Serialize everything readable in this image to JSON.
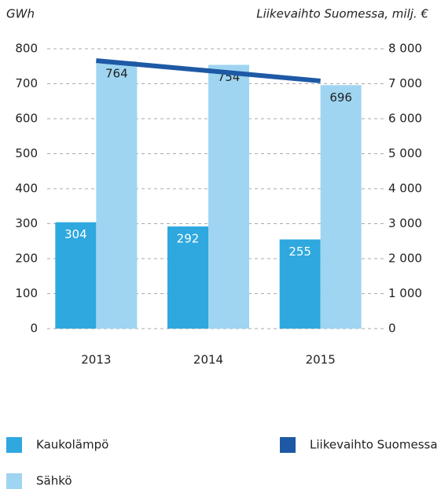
{
  "chart_data": {
    "type": "bar",
    "y_axis_label": "GWh",
    "y2_axis_label": "Liikevaihto Suomessa, milj. €",
    "categories": [
      "2013",
      "2014",
      "2015"
    ],
    "series": [
      {
        "name": "Kaukolämpö",
        "color": "#2fa8df",
        "values": [
          304,
          292,
          255
        ]
      },
      {
        "name": "Sähkö",
        "color": "#9fd5f1",
        "values": [
          764,
          754,
          696
        ]
      },
      {
        "name": "Liikevaihto Suomessa",
        "color": "#1e59a5",
        "type": "line",
        "axis": "y2",
        "values": [
          7660,
          7370,
          7080
        ]
      }
    ],
    "ylim": [
      0,
      800
    ],
    "yticks": [
      0,
      100,
      200,
      300,
      400,
      500,
      600,
      700,
      800
    ],
    "y2lim": [
      0,
      8000
    ],
    "y2ticks": [
      0,
      {
        "value": 1000,
        "label": "1 000"
      },
      {
        "value": 2000,
        "label": "2 000"
      },
      {
        "value": 3000,
        "label": "3 000"
      },
      {
        "value": 4000,
        "label": "4 000"
      },
      {
        "value": 5000,
        "label": "5 000"
      },
      {
        "value": 6000,
        "label": "6 000"
      },
      {
        "value": 7000,
        "label": "7 000"
      },
      {
        "value": 8000,
        "label": "8 000"
      }
    ],
    "grid": true
  }
}
